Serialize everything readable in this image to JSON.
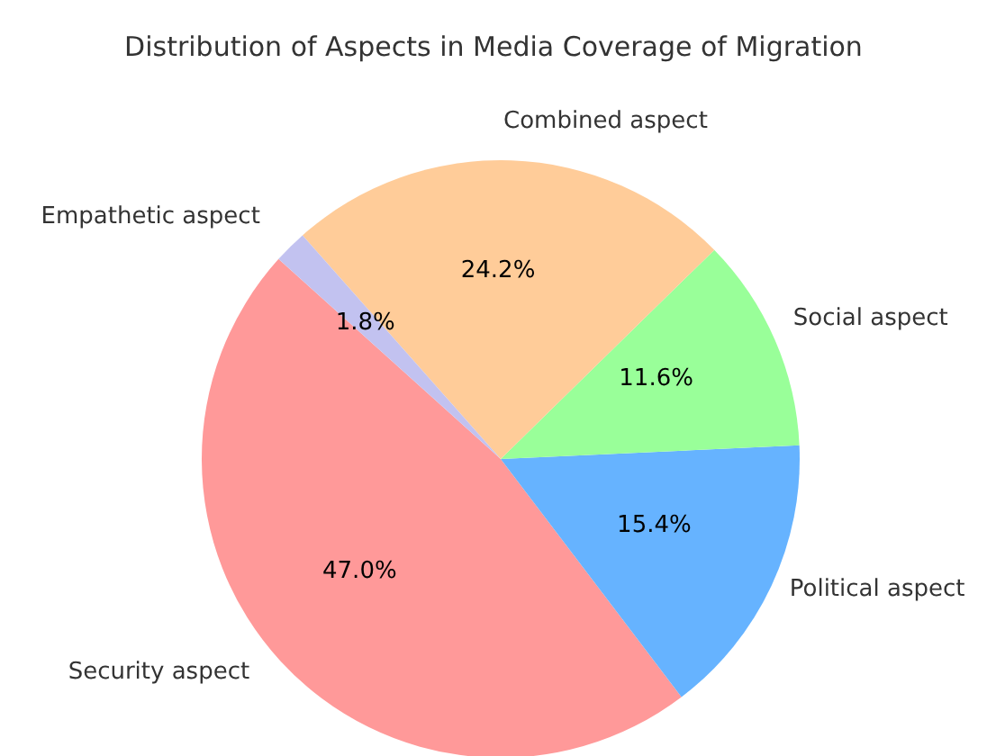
{
  "chart_data": {
    "type": "pie",
    "title": "Distribution of Aspects in Media Coverage of Migration",
    "categories": [
      "Security aspect",
      "Political aspect",
      "Social aspect",
      "Combined aspect",
      "Empathetic aspect"
    ],
    "values": [
      47.0,
      15.4,
      11.6,
      24.2,
      1.8
    ],
    "colors": [
      "#ff9999",
      "#66b3ff",
      "#99ff99",
      "#ffcc99",
      "#c2c2f0"
    ],
    "value_labels": [
      "47.0%",
      "15.4%",
      "11.6%",
      "24.2%",
      "1.8%"
    ]
  }
}
